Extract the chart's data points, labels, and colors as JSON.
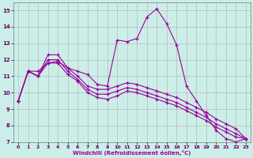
{
  "xlabel": "Windchill (Refroidissement éolien,°C)",
  "bg_color": "#cceee8",
  "line_color": "#990099",
  "grid_color": "#b0b0b0",
  "xlim": [
    -0.5,
    23.5
  ],
  "ylim": [
    7,
    15.5
  ],
  "xticks": [
    0,
    1,
    2,
    3,
    4,
    5,
    6,
    7,
    8,
    9,
    10,
    11,
    12,
    13,
    14,
    15,
    16,
    17,
    18,
    19,
    20,
    21,
    22,
    23
  ],
  "yticks": [
    7,
    8,
    9,
    10,
    11,
    12,
    13,
    14,
    15
  ],
  "series": [
    [
      9.5,
      11.3,
      11.3,
      11.8,
      11.9,
      11.5,
      11.3,
      11.1,
      10.5,
      10.4,
      13.2,
      13.1,
      13.3,
      14.6,
      15.1,
      14.2,
      12.9,
      10.4,
      9.5,
      8.6,
      7.7,
      7.2,
      7.0,
      7.2
    ],
    [
      9.5,
      11.3,
      11.0,
      12.3,
      12.3,
      11.5,
      11.0,
      10.4,
      10.2,
      10.2,
      10.4,
      10.6,
      10.5,
      10.3,
      10.1,
      9.9,
      9.7,
      9.4,
      9.1,
      8.8,
      8.4,
      8.1,
      7.8,
      7.2
    ],
    [
      9.5,
      11.3,
      11.0,
      12.0,
      12.0,
      11.3,
      10.8,
      10.2,
      9.9,
      9.9,
      10.1,
      10.3,
      10.2,
      10.0,
      9.8,
      9.6,
      9.4,
      9.1,
      8.8,
      8.5,
      8.1,
      7.8,
      7.5,
      7.2
    ],
    [
      9.5,
      11.3,
      11.0,
      11.8,
      11.8,
      11.1,
      10.7,
      10.0,
      9.7,
      9.6,
      9.8,
      10.1,
      10.0,
      9.8,
      9.6,
      9.4,
      9.2,
      8.9,
      8.6,
      8.3,
      7.9,
      7.6,
      7.3,
      7.2
    ]
  ]
}
